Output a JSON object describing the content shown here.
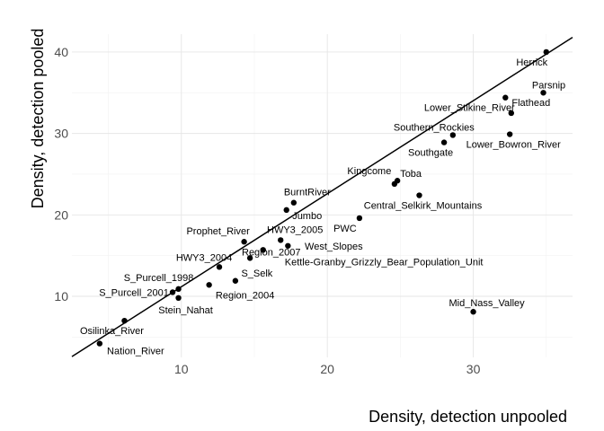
{
  "chart_data": {
    "type": "scatter",
    "title": "",
    "xlabel": "Density, detection unpooled",
    "ylabel": "Density, detection pooled",
    "xlim": [
      2.5,
      36.8
    ],
    "ylim": [
      2.5,
      42.2
    ],
    "x_ticks": [
      10,
      20,
      30
    ],
    "y_ticks": [
      10,
      20,
      30,
      40
    ],
    "grid": true,
    "legend": "none",
    "fit_line": {
      "x": [
        2.5,
        36.8
      ],
      "y": [
        2.6,
        41.8
      ]
    },
    "points": [
      {
        "label": "Herrick",
        "x": 35.0,
        "y": 40.0
      },
      {
        "label": "Parsnip",
        "x": 34.8,
        "y": 35.0
      },
      {
        "label": "Lower_Stikine_River",
        "x": 32.2,
        "y": 34.4
      },
      {
        "label": "Flathead",
        "x": 32.6,
        "y": 32.5
      },
      {
        "label": "Southern_Rockies",
        "x": 28.6,
        "y": 29.8
      },
      {
        "label": "Lower_Bowron_River",
        "x": 32.5,
        "y": 29.9
      },
      {
        "label": "Southgate",
        "x": 28.0,
        "y": 28.9
      },
      {
        "label": "Toba",
        "x": 24.8,
        "y": 24.2
      },
      {
        "label": "Kingcome",
        "x": 24.6,
        "y": 23.8
      },
      {
        "label": "Central_Selkirk_Mountains",
        "x": 26.3,
        "y": 22.4
      },
      {
        "label": "BurntRiver",
        "x": 17.7,
        "y": 21.5
      },
      {
        "label": "Jumbo",
        "x": 17.2,
        "y": 20.6
      },
      {
        "label": "PWC",
        "x": 22.2,
        "y": 19.6
      },
      {
        "label": "HWY3_2005",
        "x": 16.8,
        "y": 16.9
      },
      {
        "label": "Prophet_River",
        "x": 14.3,
        "y": 16.7
      },
      {
        "label": "Region_2007",
        "x": 15.6,
        "y": 15.7
      },
      {
        "label": "West_Slopes",
        "x": 17.3,
        "y": 16.2
      },
      {
        "label": "Kettle-Granby_Grizzly_Bear_Population_Unit",
        "x": 14.7,
        "y": 14.7
      },
      {
        "label": "HWY3_2004",
        "x": 12.6,
        "y": 13.6
      },
      {
        "label": "S_Selk",
        "x": 13.7,
        "y": 11.9
      },
      {
        "label": "Region_2004",
        "x": 11.9,
        "y": 11.4
      },
      {
        "label": "S_Purcell_1998",
        "x": 9.8,
        "y": 10.9
      },
      {
        "label": "S_Purcell_2001",
        "x": 9.4,
        "y": 10.5
      },
      {
        "label": "Stein_Nahat",
        "x": 9.8,
        "y": 9.8
      },
      {
        "label": "Mid_Nass_Valley",
        "x": 30.0,
        "y": 8.1
      },
      {
        "label": "Osilinka_River",
        "x": 6.1,
        "y": 7.0
      },
      {
        "label": "Nation_River",
        "x": 4.4,
        "y": 4.2
      }
    ]
  }
}
